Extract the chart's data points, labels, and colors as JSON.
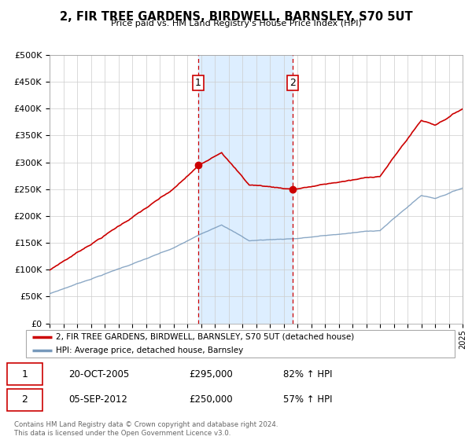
{
  "title": "2, FIR TREE GARDENS, BIRDWELL, BARNSLEY, S70 5UT",
  "subtitle": "Price paid vs. HM Land Registry's House Price Index (HPI)",
  "legend_line1": "2, FIR TREE GARDENS, BIRDWELL, BARNSLEY, S70 5UT (detached house)",
  "legend_line2": "HPI: Average price, detached house, Barnsley",
  "marker1_date": "20-OCT-2005",
  "marker1_price": 295000,
  "marker1_hpi": "82% ↑ HPI",
  "marker1_year": 2005.8,
  "marker2_date": "05-SEP-2012",
  "marker2_price": 250000,
  "marker2_hpi": "57% ↑ HPI",
  "marker2_year": 2012.67,
  "shade_start": 2005.8,
  "shade_end": 2012.67,
  "red_line_color": "#cc0000",
  "blue_line_color": "#7799bb",
  "shade_color": "#ddeeff",
  "marker_dashed_color": "#cc0000",
  "background_color": "#ffffff",
  "grid_color": "#cccccc",
  "ylim": [
    0,
    500000
  ],
  "xlim_start": 1995,
  "xlim_end": 2025,
  "footer_text": "Contains HM Land Registry data © Crown copyright and database right 2024.\nThis data is licensed under the Open Government Licence v3.0."
}
